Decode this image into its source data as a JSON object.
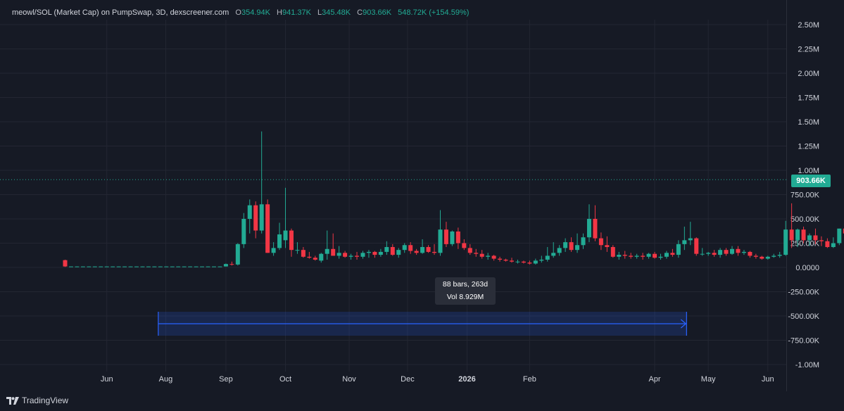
{
  "legend": {
    "title": "meowl/SOL (Market Cap) on PumpSwap, 3D, dexscreener.com",
    "o_label": "O",
    "o_value": "354.94K",
    "h_label": "H",
    "h_value": "941.37K",
    "l_label": "L",
    "l_value": "345.48K",
    "c_label": "C",
    "c_value": "903.66K",
    "change": "548.72K (+154.59%)"
  },
  "price_tag": "903.66K",
  "measure": {
    "bars": "88 bars, 263d",
    "vol": "Vol 8.929M"
  },
  "brand": "TradingView",
  "colors": {
    "up": "#22ab94",
    "down": "#f23645",
    "bg": "#161a25",
    "grid": "#232632",
    "measure": "#2962ff"
  },
  "chart_data": {
    "type": "candlestick",
    "y_ticks": [
      -1000000,
      -750000,
      -500000,
      -250000,
      0,
      250000,
      500000,
      750000,
      1000000,
      1250000,
      1500000,
      1750000,
      2000000,
      2250000,
      2500000
    ],
    "y_tick_labels": [
      "-1.00M",
      "-750.00K",
      "-500.00K",
      "-250.00K",
      "0.0000",
      "250.00K",
      "500.00K",
      "750.00K",
      "1.00M",
      "1.25M",
      "1.50M",
      "1.75M",
      "2.00M",
      "2.25M",
      "2.50M"
    ],
    "x_ticks": [
      "Jun",
      "Aug",
      "Sep",
      "Oct",
      "Nov",
      "Dec",
      "2026",
      "Feb",
      "Apr",
      "May",
      "Jun"
    ],
    "last_price": 903660,
    "measure_range": {
      "start_bar": 16,
      "end_bar": 104,
      "bars": 88,
      "days": 263
    },
    "candles": [
      [
        75000,
        80000,
        5000,
        10000
      ],
      [
        10000,
        11000,
        9000,
        10000
      ],
      [
        10000,
        11000,
        9000,
        10000
      ],
      [
        10000,
        11000,
        9000,
        10000
      ],
      [
        10000,
        11000,
        9000,
        10000
      ],
      [
        10000,
        11000,
        9000,
        10000
      ],
      [
        10000,
        11000,
        9000,
        10000
      ],
      [
        10000,
        11000,
        9000,
        10000
      ],
      [
        10000,
        11000,
        9000,
        10000
      ],
      [
        10000,
        11000,
        9000,
        10000
      ],
      [
        10000,
        11000,
        9000,
        10000
      ],
      [
        10000,
        11000,
        9000,
        10000
      ],
      [
        10000,
        11000,
        9000,
        10000
      ],
      [
        10000,
        11000,
        9000,
        10000
      ],
      [
        10000,
        11000,
        9000,
        10000
      ],
      [
        10000,
        11000,
        9000,
        10000
      ],
      [
        10000,
        11000,
        9000,
        10000
      ],
      [
        10000,
        11000,
        9000,
        10000
      ],
      [
        10000,
        11000,
        9000,
        10000
      ],
      [
        10000,
        11000,
        9000,
        10000
      ],
      [
        10000,
        11000,
        9000,
        10000
      ],
      [
        10000,
        11000,
        9000,
        10000
      ],
      [
        10000,
        11000,
        9000,
        10000
      ],
      [
        10000,
        11000,
        9000,
        10000
      ],
      [
        10000,
        11000,
        9000,
        10000
      ],
      [
        10000,
        11000,
        9000,
        10000
      ],
      [
        10000,
        11000,
        9000,
        10000
      ],
      [
        10000,
        40000,
        9000,
        35000
      ],
      [
        35000,
        60000,
        20000,
        30000
      ],
      [
        30000,
        250000,
        20000,
        240000
      ],
      [
        240000,
        560000,
        200000,
        500000
      ],
      [
        500000,
        700000,
        350000,
        640000
      ],
      [
        640000,
        680000,
        300000,
        380000
      ],
      [
        380000,
        1400000,
        350000,
        650000
      ],
      [
        650000,
        700000,
        150000,
        150000
      ],
      [
        150000,
        260000,
        120000,
        200000
      ],
      [
        200000,
        460000,
        180000,
        340000
      ],
      [
        280000,
        820000,
        200000,
        380000
      ],
      [
        380000,
        400000,
        110000,
        180000
      ],
      [
        180000,
        260000,
        140000,
        180000
      ],
      [
        180000,
        210000,
        100000,
        110000
      ],
      [
        110000,
        160000,
        90000,
        100000
      ],
      [
        100000,
        120000,
        70000,
        80000
      ],
      [
        70000,
        150000,
        50000,
        140000
      ],
      [
        140000,
        380000,
        80000,
        190000
      ],
      [
        190000,
        350000,
        120000,
        120000
      ],
      [
        120000,
        220000,
        90000,
        150000
      ],
      [
        150000,
        170000,
        100000,
        110000
      ],
      [
        110000,
        140000,
        80000,
        120000
      ],
      [
        120000,
        160000,
        80000,
        110000
      ],
      [
        110000,
        170000,
        90000,
        150000
      ],
      [
        150000,
        180000,
        100000,
        160000
      ],
      [
        160000,
        170000,
        100000,
        130000
      ],
      [
        130000,
        190000,
        110000,
        160000
      ],
      [
        160000,
        270000,
        130000,
        210000
      ],
      [
        210000,
        240000,
        120000,
        130000
      ],
      [
        130000,
        200000,
        100000,
        180000
      ],
      [
        180000,
        250000,
        150000,
        230000
      ],
      [
        230000,
        260000,
        140000,
        170000
      ],
      [
        170000,
        190000,
        130000,
        150000
      ],
      [
        150000,
        290000,
        140000,
        210000
      ],
      [
        210000,
        230000,
        150000,
        160000
      ],
      [
        160000,
        240000,
        130000,
        150000
      ],
      [
        150000,
        590000,
        120000,
        390000
      ],
      [
        390000,
        470000,
        210000,
        240000
      ],
      [
        240000,
        380000,
        220000,
        370000
      ],
      [
        370000,
        410000,
        190000,
        250000
      ],
      [
        250000,
        290000,
        180000,
        200000
      ],
      [
        200000,
        240000,
        130000,
        150000
      ],
      [
        150000,
        190000,
        110000,
        140000
      ],
      [
        140000,
        180000,
        90000,
        110000
      ],
      [
        110000,
        150000,
        80000,
        120000
      ],
      [
        120000,
        130000,
        70000,
        90000
      ],
      [
        90000,
        110000,
        60000,
        80000
      ],
      [
        80000,
        90000,
        60000,
        70000
      ],
      [
        70000,
        100000,
        50000,
        60000
      ],
      [
        60000,
        80000,
        40000,
        60000
      ],
      [
        60000,
        70000,
        40000,
        50000
      ],
      [
        50000,
        70000,
        30000,
        40000
      ],
      [
        40000,
        90000,
        30000,
        70000
      ],
      [
        70000,
        120000,
        50000,
        80000
      ],
      [
        80000,
        210000,
        60000,
        120000
      ],
      [
        120000,
        260000,
        100000,
        150000
      ],
      [
        150000,
        230000,
        120000,
        200000
      ],
      [
        200000,
        300000,
        160000,
        260000
      ],
      [
        260000,
        310000,
        160000,
        180000
      ],
      [
        180000,
        350000,
        150000,
        230000
      ],
      [
        230000,
        350000,
        190000,
        310000
      ],
      [
        310000,
        650000,
        260000,
        500000
      ],
      [
        500000,
        640000,
        270000,
        300000
      ],
      [
        300000,
        360000,
        180000,
        230000
      ],
      [
        230000,
        320000,
        160000,
        210000
      ],
      [
        210000,
        230000,
        100000,
        110000
      ],
      [
        110000,
        160000,
        80000,
        130000
      ],
      [
        130000,
        170000,
        90000,
        120000
      ],
      [
        120000,
        150000,
        90000,
        110000
      ],
      [
        110000,
        140000,
        90000,
        120000
      ],
      [
        120000,
        150000,
        80000,
        110000
      ],
      [
        110000,
        150000,
        90000,
        140000
      ],
      [
        140000,
        160000,
        90000,
        100000
      ],
      [
        100000,
        140000,
        80000,
        110000
      ],
      [
        110000,
        170000,
        90000,
        150000
      ],
      [
        150000,
        190000,
        110000,
        130000
      ],
      [
        130000,
        280000,
        100000,
        240000
      ],
      [
        240000,
        420000,
        180000,
        280000
      ],
      [
        280000,
        470000,
        230000,
        300000
      ],
      [
        300000,
        310000,
        120000,
        140000
      ],
      [
        140000,
        200000,
        120000,
        140000
      ],
      [
        140000,
        160000,
        120000,
        150000
      ],
      [
        150000,
        180000,
        110000,
        130000
      ],
      [
        130000,
        200000,
        100000,
        180000
      ],
      [
        180000,
        200000,
        120000,
        140000
      ],
      [
        140000,
        220000,
        130000,
        190000
      ],
      [
        190000,
        220000,
        120000,
        150000
      ],
      [
        150000,
        180000,
        130000,
        160000
      ],
      [
        160000,
        170000,
        100000,
        120000
      ],
      [
        120000,
        140000,
        90000,
        110000
      ],
      [
        110000,
        120000,
        80000,
        90000
      ],
      [
        90000,
        120000,
        80000,
        110000
      ],
      [
        110000,
        140000,
        100000,
        120000
      ],
      [
        120000,
        160000,
        100000,
        130000
      ],
      [
        130000,
        480000,
        120000,
        390000
      ],
      [
        390000,
        660000,
        200000,
        280000
      ],
      [
        280000,
        400000,
        210000,
        390000
      ],
      [
        390000,
        420000,
        250000,
        280000
      ],
      [
        280000,
        350000,
        220000,
        330000
      ],
      [
        330000,
        400000,
        240000,
        280000
      ],
      [
        280000,
        320000,
        220000,
        270000
      ],
      [
        270000,
        300000,
        200000,
        210000
      ],
      [
        210000,
        310000,
        200000,
        250000
      ],
      [
        250000,
        400000,
        230000,
        400000
      ],
      [
        400000,
        430000,
        300000,
        350000
      ],
      [
        354940,
        941370,
        345480,
        903660
      ]
    ]
  }
}
